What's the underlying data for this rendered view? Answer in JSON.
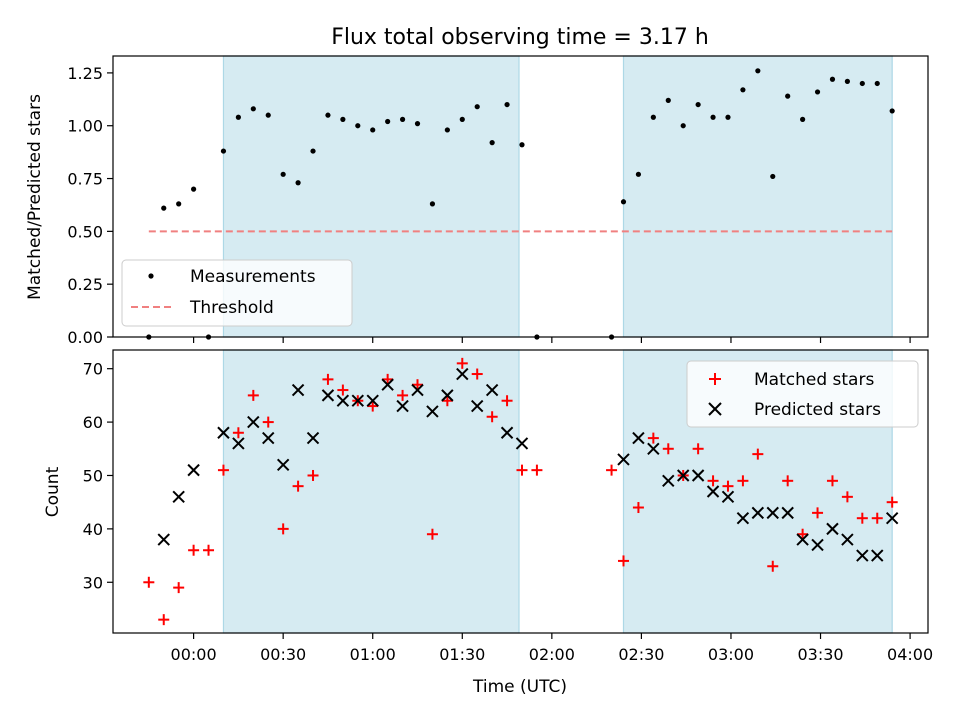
{
  "chart_data": [
    {
      "type": "scatter",
      "title": "Flux total observing time = 3.17 h",
      "ylabel": "Matched/Predicted stars",
      "xlabel": "",
      "ylim": [
        0,
        1.33
      ],
      "xlim_minutes": [
        -27,
        246
      ],
      "yticks": [
        0.0,
        0.25,
        0.5,
        0.75,
        1.0,
        1.25
      ],
      "ytick_labels": [
        "0.00",
        "0.25",
        "0.50",
        "0.75",
        "1.00",
        "1.25"
      ],
      "xticks_minutes": [
        0,
        30,
        60,
        90,
        120,
        150,
        180,
        210,
        240
      ],
      "shaded_intervals_minutes": [
        [
          10,
          109
        ],
        [
          144,
          234
        ]
      ],
      "threshold": {
        "value": 0.5,
        "x_range_minutes": [
          -15,
          234
        ],
        "color": "#f08080"
      },
      "legend": {
        "placement": "lower-left",
        "entries": [
          "Measurements",
          "Threshold"
        ]
      },
      "series": [
        {
          "name": "Measurements",
          "marker": "dot",
          "color": "#000000",
          "points": [
            [
              -15,
              0.0
            ],
            [
              -10,
              0.61
            ],
            [
              -5,
              0.63
            ],
            [
              0,
              0.7
            ],
            [
              5,
              0.0
            ],
            [
              10,
              0.88
            ],
            [
              15,
              1.04
            ],
            [
              20,
              1.08
            ],
            [
              25,
              1.05
            ],
            [
              30,
              0.77
            ],
            [
              35,
              0.73
            ],
            [
              40,
              0.88
            ],
            [
              45,
              1.05
            ],
            [
              50,
              1.03
            ],
            [
              55,
              1.0
            ],
            [
              60,
              0.98
            ],
            [
              65,
              1.02
            ],
            [
              70,
              1.03
            ],
            [
              75,
              1.01
            ],
            [
              80,
              0.63
            ],
            [
              85,
              0.98
            ],
            [
              90,
              1.03
            ],
            [
              95,
              1.09
            ],
            [
              100,
              0.92
            ],
            [
              105,
              1.1
            ],
            [
              110,
              0.91
            ],
            [
              115,
              0.0
            ],
            [
              140,
              0.0
            ],
            [
              144,
              0.64
            ],
            [
              149,
              0.77
            ],
            [
              154,
              1.04
            ],
            [
              159,
              1.12
            ],
            [
              164,
              1.0
            ],
            [
              169,
              1.1
            ],
            [
              174,
              1.04
            ],
            [
              179,
              1.04
            ],
            [
              184,
              1.17
            ],
            [
              189,
              1.26
            ],
            [
              194,
              0.76
            ],
            [
              199,
              1.14
            ],
            [
              204,
              1.03
            ],
            [
              209,
              1.16
            ],
            [
              214,
              1.22
            ],
            [
              219,
              1.21
            ],
            [
              224,
              1.2
            ],
            [
              229,
              1.2
            ],
            [
              234,
              1.07
            ]
          ]
        },
        {
          "name": "Threshold",
          "line": "dashed",
          "color": "#f08080"
        }
      ]
    },
    {
      "type": "scatter",
      "title": "",
      "ylabel": "Count",
      "xlabel": "Time (UTC)",
      "ylim": [
        20.5,
        73.5
      ],
      "xlim_minutes": [
        -27,
        246
      ],
      "yticks": [
        30,
        40,
        50,
        60,
        70
      ],
      "ytick_labels": [
        "30",
        "40",
        "50",
        "60",
        "70"
      ],
      "xticks_minutes": [
        0,
        30,
        60,
        90,
        120,
        150,
        180,
        210,
        240
      ],
      "xtick_labels": [
        "00:00",
        "00:30",
        "01:00",
        "01:30",
        "02:00",
        "02:30",
        "03:00",
        "03:30",
        "04:00"
      ],
      "shaded_intervals_minutes": [
        [
          10,
          109
        ],
        [
          144,
          234
        ]
      ],
      "legend": {
        "placement": "top-right",
        "entries": [
          "Matched stars",
          "Predicted stars"
        ]
      },
      "series": [
        {
          "name": "Matched stars",
          "marker": "plus",
          "color": "#ff0000",
          "points": [
            [
              -15,
              30
            ],
            [
              -10,
              23
            ],
            [
              -5,
              29
            ],
            [
              0,
              36
            ],
            [
              5,
              36
            ],
            [
              10,
              51
            ],
            [
              15,
              58
            ],
            [
              20,
              65
            ],
            [
              25,
              60
            ],
            [
              30,
              40
            ],
            [
              35,
              48
            ],
            [
              40,
              50
            ],
            [
              45,
              68
            ],
            [
              50,
              66
            ],
            [
              55,
              64
            ],
            [
              60,
              63
            ],
            [
              65,
              68
            ],
            [
              70,
              65
            ],
            [
              75,
              67
            ],
            [
              80,
              39
            ],
            [
              85,
              64
            ],
            [
              90,
              71
            ],
            [
              95,
              69
            ],
            [
              100,
              61
            ],
            [
              105,
              64
            ],
            [
              110,
              51
            ],
            [
              115,
              51
            ],
            [
              140,
              51
            ],
            [
              144,
              34
            ],
            [
              149,
              44
            ],
            [
              154,
              57
            ],
            [
              159,
              55
            ],
            [
              164,
              50
            ],
            [
              169,
              55
            ],
            [
              174,
              49
            ],
            [
              179,
              48
            ],
            [
              184,
              49
            ],
            [
              189,
              54
            ],
            [
              194,
              33
            ],
            [
              199,
              49
            ],
            [
              204,
              39
            ],
            [
              209,
              43
            ],
            [
              214,
              49
            ],
            [
              219,
              46
            ],
            [
              224,
              42
            ],
            [
              229,
              42
            ],
            [
              234,
              45
            ]
          ]
        },
        {
          "name": "Predicted stars",
          "marker": "x",
          "color": "#000000",
          "points": [
            [
              -10,
              38
            ],
            [
              -5,
              46
            ],
            [
              0,
              51
            ],
            [
              10,
              58
            ],
            [
              15,
              56
            ],
            [
              20,
              60
            ],
            [
              25,
              57
            ],
            [
              30,
              52
            ],
            [
              35,
              66
            ],
            [
              40,
              57
            ],
            [
              45,
              65
            ],
            [
              50,
              64
            ],
            [
              55,
              64
            ],
            [
              60,
              64
            ],
            [
              65,
              67
            ],
            [
              70,
              63
            ],
            [
              75,
              66
            ],
            [
              80,
              62
            ],
            [
              85,
              65
            ],
            [
              90,
              69
            ],
            [
              95,
              63
            ],
            [
              100,
              66
            ],
            [
              105,
              58
            ],
            [
              110,
              56
            ],
            [
              144,
              53
            ],
            [
              149,
              57
            ],
            [
              154,
              55
            ],
            [
              159,
              49
            ],
            [
              164,
              50
            ],
            [
              169,
              50
            ],
            [
              174,
              47
            ],
            [
              179,
              46
            ],
            [
              184,
              42
            ],
            [
              189,
              43
            ],
            [
              194,
              43
            ],
            [
              199,
              43
            ],
            [
              204,
              38
            ],
            [
              209,
              37
            ],
            [
              214,
              40
            ],
            [
              219,
              38
            ],
            [
              224,
              35
            ],
            [
              229,
              35
            ],
            [
              234,
              42
            ]
          ]
        }
      ]
    }
  ],
  "colors": {
    "shade": "#add8e6",
    "matched": "#ff0000",
    "predicted": "#000000",
    "measurement": "#000000",
    "threshold": "#f08080"
  }
}
